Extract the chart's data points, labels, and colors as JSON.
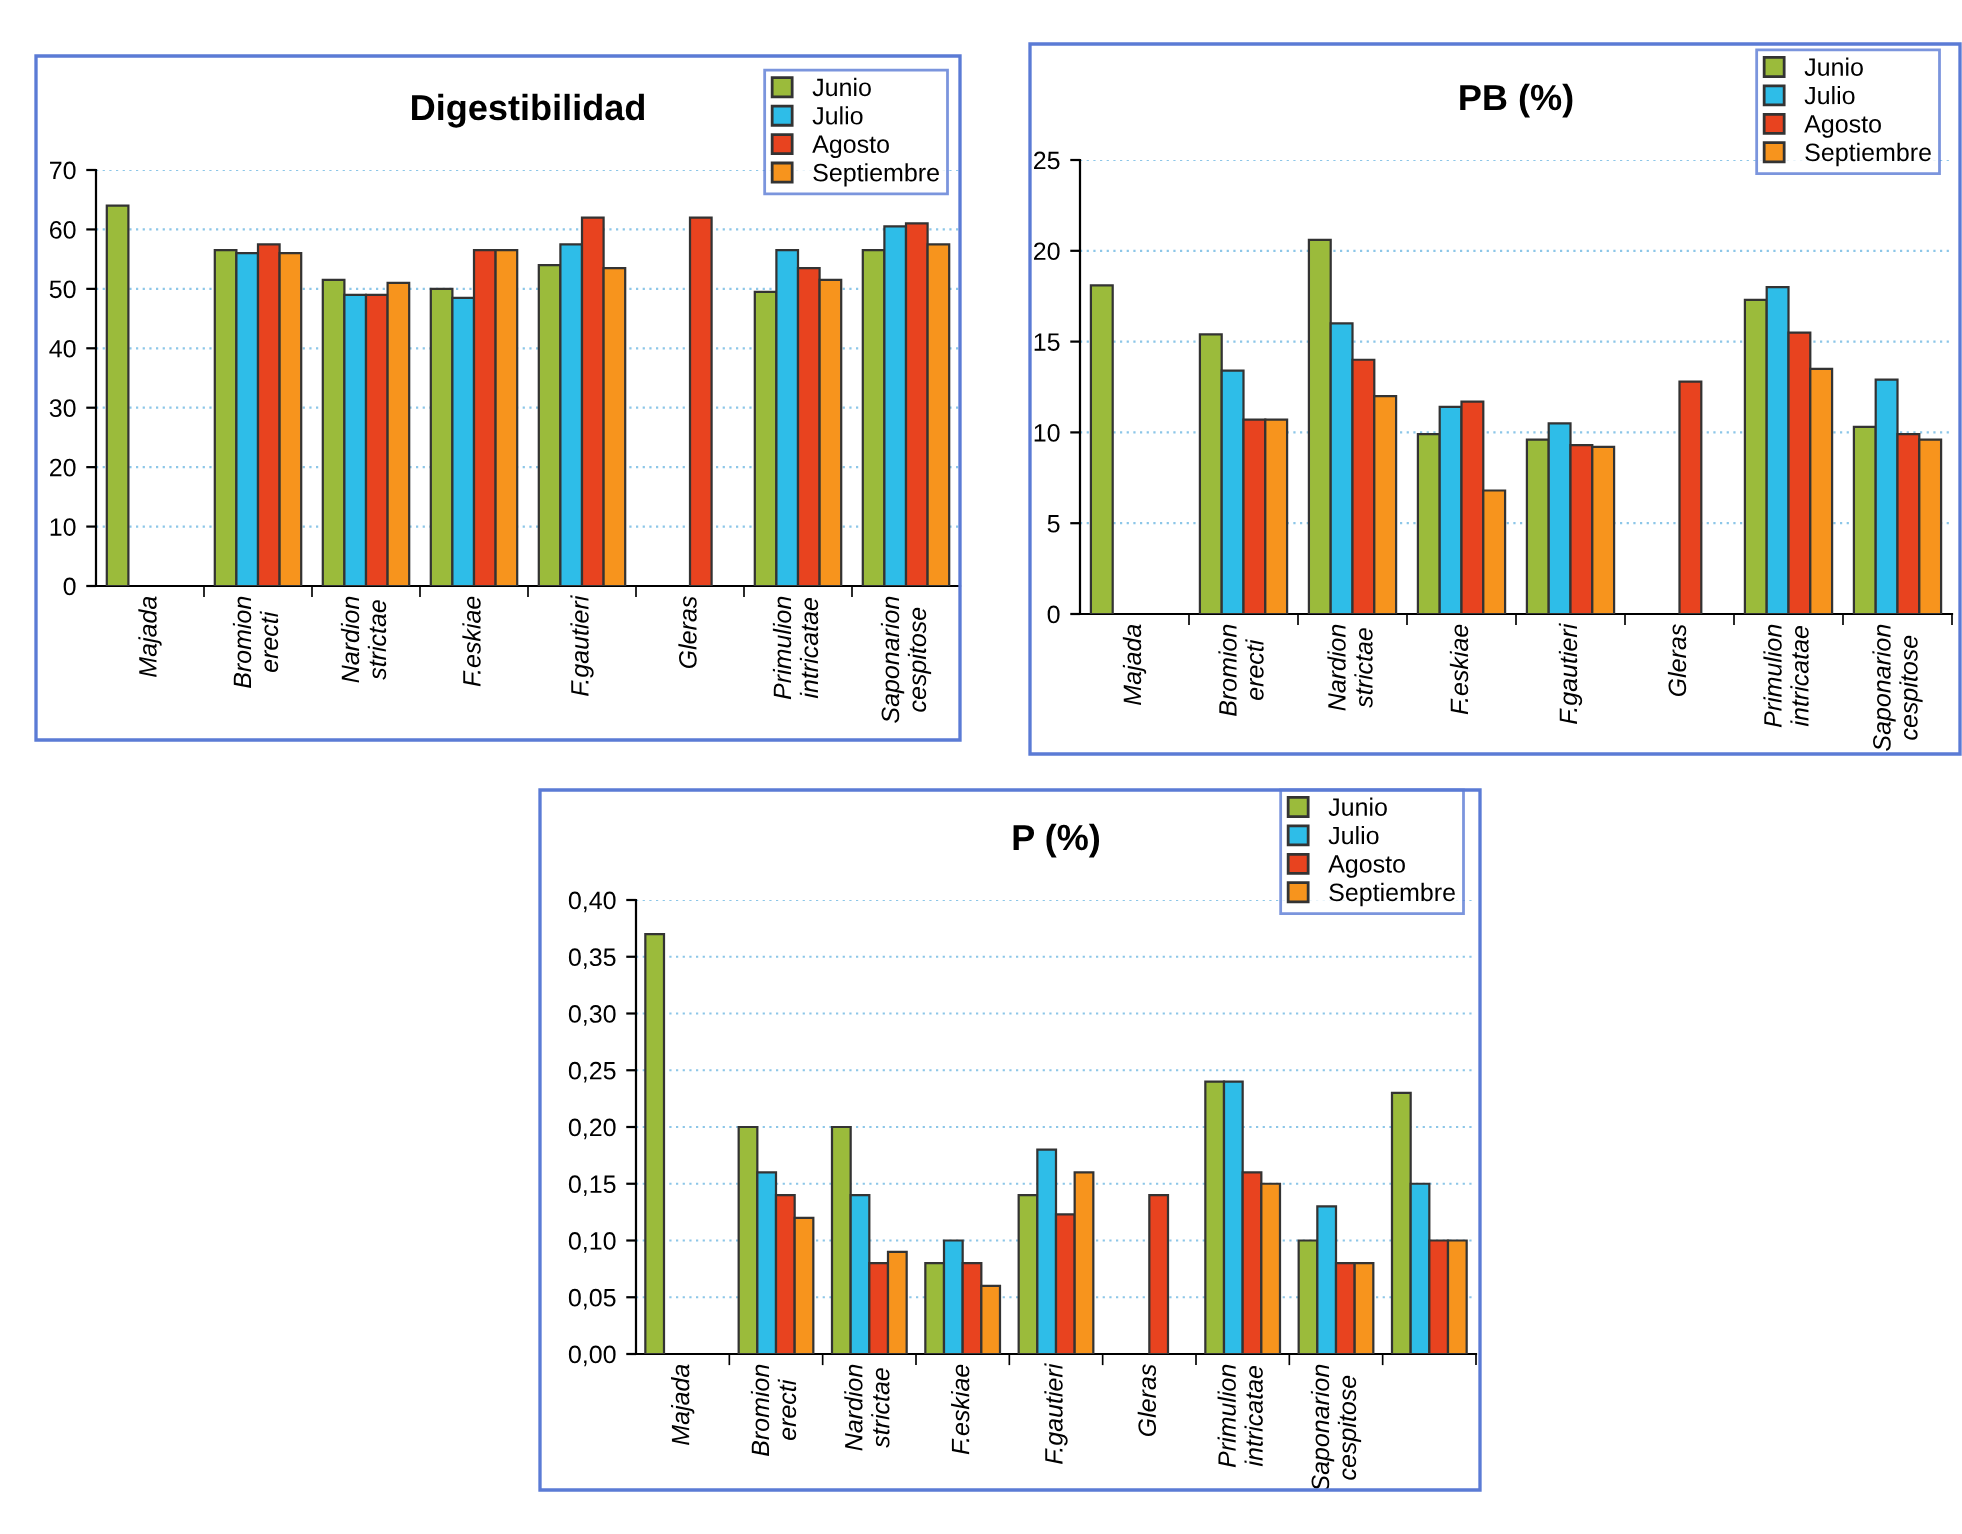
{
  "chart_data": [
    {
      "type": "bar",
      "title": "Digestibilidad",
      "categories": [
        "Majada",
        "Bromion\nerecti",
        "Nardion\nstrictae",
        "F.eskiae",
        "F.gautieri",
        "Gleras",
        "Primulion\nintricatae",
        "Saponarion\ncespitose"
      ],
      "series": [
        {
          "name": "Junio",
          "color": "#9bbb3b",
          "values": [
            64,
            56.5,
            51.5,
            50,
            54,
            null,
            49.5,
            56.5
          ]
        },
        {
          "name": "Julio",
          "color": "#2ebde8",
          "values": [
            null,
            56,
            49,
            48.5,
            57.5,
            null,
            56.5,
            60.5
          ]
        },
        {
          "name": "Agosto",
          "color": "#e8431f",
          "values": [
            null,
            57.5,
            49,
            56.5,
            62,
            62,
            53.5,
            61
          ]
        },
        {
          "name": "Septiembre",
          "color": "#f7941d",
          "values": [
            null,
            56,
            51,
            56.5,
            53.5,
            null,
            51.5,
            57.5
          ]
        }
      ],
      "ylim": [
        0,
        70
      ],
      "yticks": [
        0,
        10,
        20,
        30,
        40,
        50,
        60,
        70
      ],
      "grid": "y",
      "legend": "top right"
    },
    {
      "type": "bar",
      "title": "PB (%)",
      "categories": [
        "Majada",
        "Bromion\nerecti",
        "Nardion\nstrictae",
        "F.eskiae",
        "F.gautieri",
        "Gleras",
        "Primulion\nintricatae",
        "Saponarion\ncespitose"
      ],
      "series": [
        {
          "name": "Junio",
          "color": "#9bbb3b",
          "values": [
            18.1,
            15.4,
            20.6,
            9.9,
            9.6,
            null,
            17.3,
            10.3
          ]
        },
        {
          "name": "Julio",
          "color": "#2ebde8",
          "values": [
            null,
            13.4,
            16,
            11.4,
            10.5,
            null,
            18,
            12.9
          ]
        },
        {
          "name": "Agosto",
          "color": "#e8431f",
          "values": [
            null,
            10.7,
            14,
            11.7,
            9.3,
            12.8,
            15.5,
            9.9
          ]
        },
        {
          "name": "Septiembre",
          "color": "#f7941d",
          "values": [
            null,
            10.7,
            12,
            6.8,
            9.2,
            null,
            13.5,
            9.6
          ]
        }
      ],
      "ylim": [
        0,
        25
      ],
      "yticks": [
        0,
        5,
        10,
        15,
        20,
        25
      ],
      "grid": "y",
      "legend": "top right"
    },
    {
      "type": "bar",
      "title": "P (%)",
      "categories": [
        "Majada",
        "Bromion\nerecti",
        "Nardion\nstrictae",
        "F.eskiae",
        "F.gautieri",
        "Gleras",
        "Primulion\nintricatae",
        "Saponarion\ncespitose",
        null
      ],
      "series": [
        {
          "name": "Junio",
          "color": "#9bbb3b",
          "values": [
            0.37,
            0.2,
            0.2,
            0.08,
            0.14,
            null,
            0.24,
            0.1,
            0.23
          ]
        },
        {
          "name": "Julio",
          "color": "#2ebde8",
          "values": [
            null,
            0.16,
            0.14,
            0.1,
            0.18,
            null,
            0.24,
            0.13,
            0.15
          ]
        },
        {
          "name": "Agosto",
          "color": "#e8431f",
          "values": [
            null,
            0.14,
            0.08,
            0.08,
            0.123,
            0.14,
            0.16,
            0.08,
            0.1
          ]
        },
        {
          "name": "Septiembre",
          "color": "#f7941d",
          "values": [
            null,
            0.12,
            0.09,
            0.06,
            0.16,
            null,
            0.15,
            0.08,
            0.1
          ]
        }
      ],
      "ylim": [
        0,
        0.4
      ],
      "yticks": [
        {
          "value": 0,
          "label": "0,00"
        },
        {
          "value": 0.05,
          "label": "0,05"
        },
        {
          "value": 0.1,
          "label": "0,10"
        },
        {
          "value": 0.15,
          "label": "0,15"
        },
        {
          "value": 0.2,
          "label": "0,20"
        },
        {
          "value": 0.25,
          "label": "0,25"
        },
        {
          "value": 0.3,
          "label": "0,30"
        },
        {
          "value": 0.35,
          "label": "0,35"
        },
        {
          "value": 0.4,
          "label": "0,40"
        }
      ],
      "grid": "y",
      "legend": "top right"
    }
  ]
}
